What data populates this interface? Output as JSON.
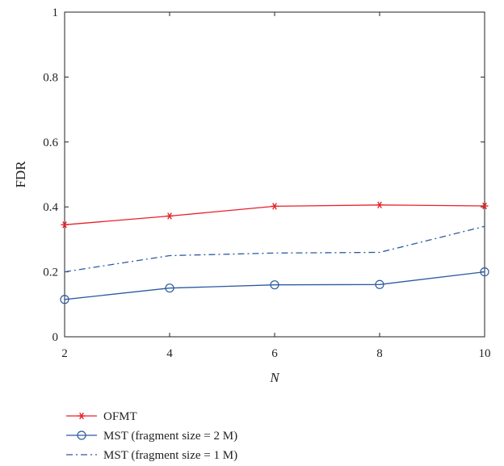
{
  "chart_data": {
    "type": "line",
    "title": "",
    "xlabel": "N",
    "ylabel": "FDR",
    "xlim": [
      2,
      10
    ],
    "ylim": [
      0,
      1
    ],
    "xticks": [
      2,
      4,
      6,
      8,
      10
    ],
    "yticks": [
      0,
      0.2,
      0.4,
      0.6,
      0.8,
      1
    ],
    "ytick_labels": [
      "0",
      "0.2",
      "0.4",
      "0.6",
      "0.8",
      "1"
    ],
    "grid": false,
    "legend_position": "bottom-left, below plot",
    "x": [
      2,
      4,
      6,
      8,
      10
    ],
    "series": [
      {
        "name": "OFMT",
        "values": [
          0.345,
          0.372,
          0.402,
          0.406,
          0.403
        ],
        "color": "#e8202a",
        "linestyle": "solid",
        "marker": "asterisk"
      },
      {
        "name": "MST (fragment size = 2 M)",
        "values": [
          0.115,
          0.15,
          0.16,
          0.161,
          0.2
        ],
        "color": "#2c5aa0",
        "linestyle": "solid",
        "marker": "circle"
      },
      {
        "name": "MST (fragment size = 1 M)",
        "values": [
          0.2,
          0.25,
          0.258,
          0.26,
          0.34
        ],
        "color": "#2c5aa0",
        "linestyle": "dashdot",
        "marker": "none"
      }
    ]
  }
}
